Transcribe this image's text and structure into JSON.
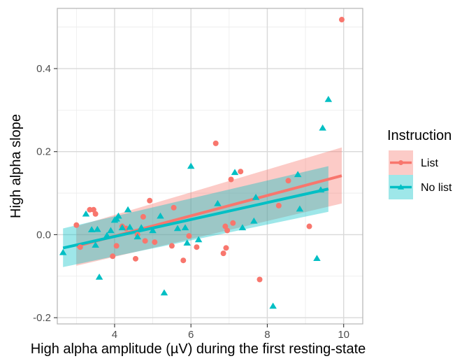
{
  "chart_data": {
    "type": "scatter",
    "xlabel": "High alpha amplitude (µV) during the first resting-state",
    "ylabel": "High alpha slope",
    "xlim": [
      2.5,
      10.5
    ],
    "ylim": [
      -0.215,
      0.545
    ],
    "x_ticks": [
      4,
      6,
      8,
      10
    ],
    "y_ticks": [
      -0.2,
      0,
      0.2,
      0.4
    ],
    "x_tick_labels": [
      "4",
      "6",
      "8",
      "10"
    ],
    "y_tick_labels": [
      "-0.2",
      "0.0",
      "0.2",
      "0.4"
    ],
    "grid": true,
    "legend": {
      "title": "Instruction",
      "position": "right"
    },
    "series": [
      {
        "name": "List",
        "color": "#F8766D",
        "marker": "circle",
        "points": [
          [
            3.0,
            0.023
          ],
          [
            3.1,
            -0.03
          ],
          [
            3.35,
            0.06
          ],
          [
            3.45,
            0.06
          ],
          [
            3.5,
            0.05
          ],
          [
            3.95,
            -0.052
          ],
          [
            4.05,
            -0.027
          ],
          [
            4.2,
            0.02
          ],
          [
            4.3,
            0.015
          ],
          [
            4.55,
            -0.058
          ],
          [
            4.6,
            0.0
          ],
          [
            4.75,
            0.043
          ],
          [
            4.8,
            -0.015
          ],
          [
            4.92,
            0.082
          ],
          [
            5.05,
            -0.018
          ],
          [
            5.5,
            -0.027
          ],
          [
            5.55,
            0.065
          ],
          [
            5.8,
            -0.062
          ],
          [
            5.95,
            -0.003
          ],
          [
            6.15,
            -0.03
          ],
          [
            6.65,
            0.22
          ],
          [
            6.85,
            -0.045
          ],
          [
            6.9,
            0.02
          ],
          [
            6.92,
            -0.032
          ],
          [
            6.95,
            0.01
          ],
          [
            7.05,
            0.133
          ],
          [
            7.1,
            0.028
          ],
          [
            7.3,
            0.152
          ],
          [
            7.8,
            -0.108
          ],
          [
            8.3,
            0.07
          ],
          [
            8.55,
            0.13
          ],
          [
            9.1,
            0.02
          ],
          [
            9.95,
            0.518
          ]
        ],
        "fit": {
          "x": [
            3.0,
            9.95
          ],
          "y": [
            -0.028,
            0.142
          ],
          "ci_low": [
            -0.075,
            0.075
          ],
          "ci_high": [
            0.02,
            0.21
          ]
        }
      },
      {
        "name": "No list",
        "color": "#00BFC4",
        "marker": "triangle",
        "points": [
          [
            2.65,
            -0.043
          ],
          [
            3.25,
            0.05
          ],
          [
            3.4,
            0.012
          ],
          [
            3.5,
            -0.025
          ],
          [
            3.55,
            0.013
          ],
          [
            3.6,
            -0.102
          ],
          [
            3.8,
            -0.002
          ],
          [
            3.9,
            0.01
          ],
          [
            4.0,
            0.035
          ],
          [
            4.05,
            0.038
          ],
          [
            4.1,
            0.045
          ],
          [
            4.2,
            0.017
          ],
          [
            4.35,
            0.06
          ],
          [
            4.4,
            0.018
          ],
          [
            4.6,
            -0.005
          ],
          [
            4.7,
            0.017
          ],
          [
            5.0,
            0.01
          ],
          [
            5.2,
            0.045
          ],
          [
            5.3,
            -0.14
          ],
          [
            5.65,
            0.015
          ],
          [
            5.85,
            0.017
          ],
          [
            5.9,
            -0.02
          ],
          [
            6.0,
            0.165
          ],
          [
            6.2,
            -0.012
          ],
          [
            6.7,
            0.075
          ],
          [
            7.15,
            0.15
          ],
          [
            7.35,
            0.017
          ],
          [
            7.65,
            0.033
          ],
          [
            7.7,
            0.09
          ],
          [
            8.15,
            -0.172
          ],
          [
            8.8,
            0.145
          ],
          [
            8.85,
            0.062
          ],
          [
            9.3,
            -0.057
          ],
          [
            9.4,
            0.108
          ],
          [
            9.45,
            0.257
          ],
          [
            9.6,
            0.326
          ]
        ],
        "fit": {
          "x": [
            2.65,
            9.6
          ],
          "y": [
            -0.032,
            0.11
          ],
          "ci_low": [
            -0.078,
            0.055
          ],
          "ci_high": [
            0.015,
            0.165
          ]
        }
      }
    ]
  }
}
